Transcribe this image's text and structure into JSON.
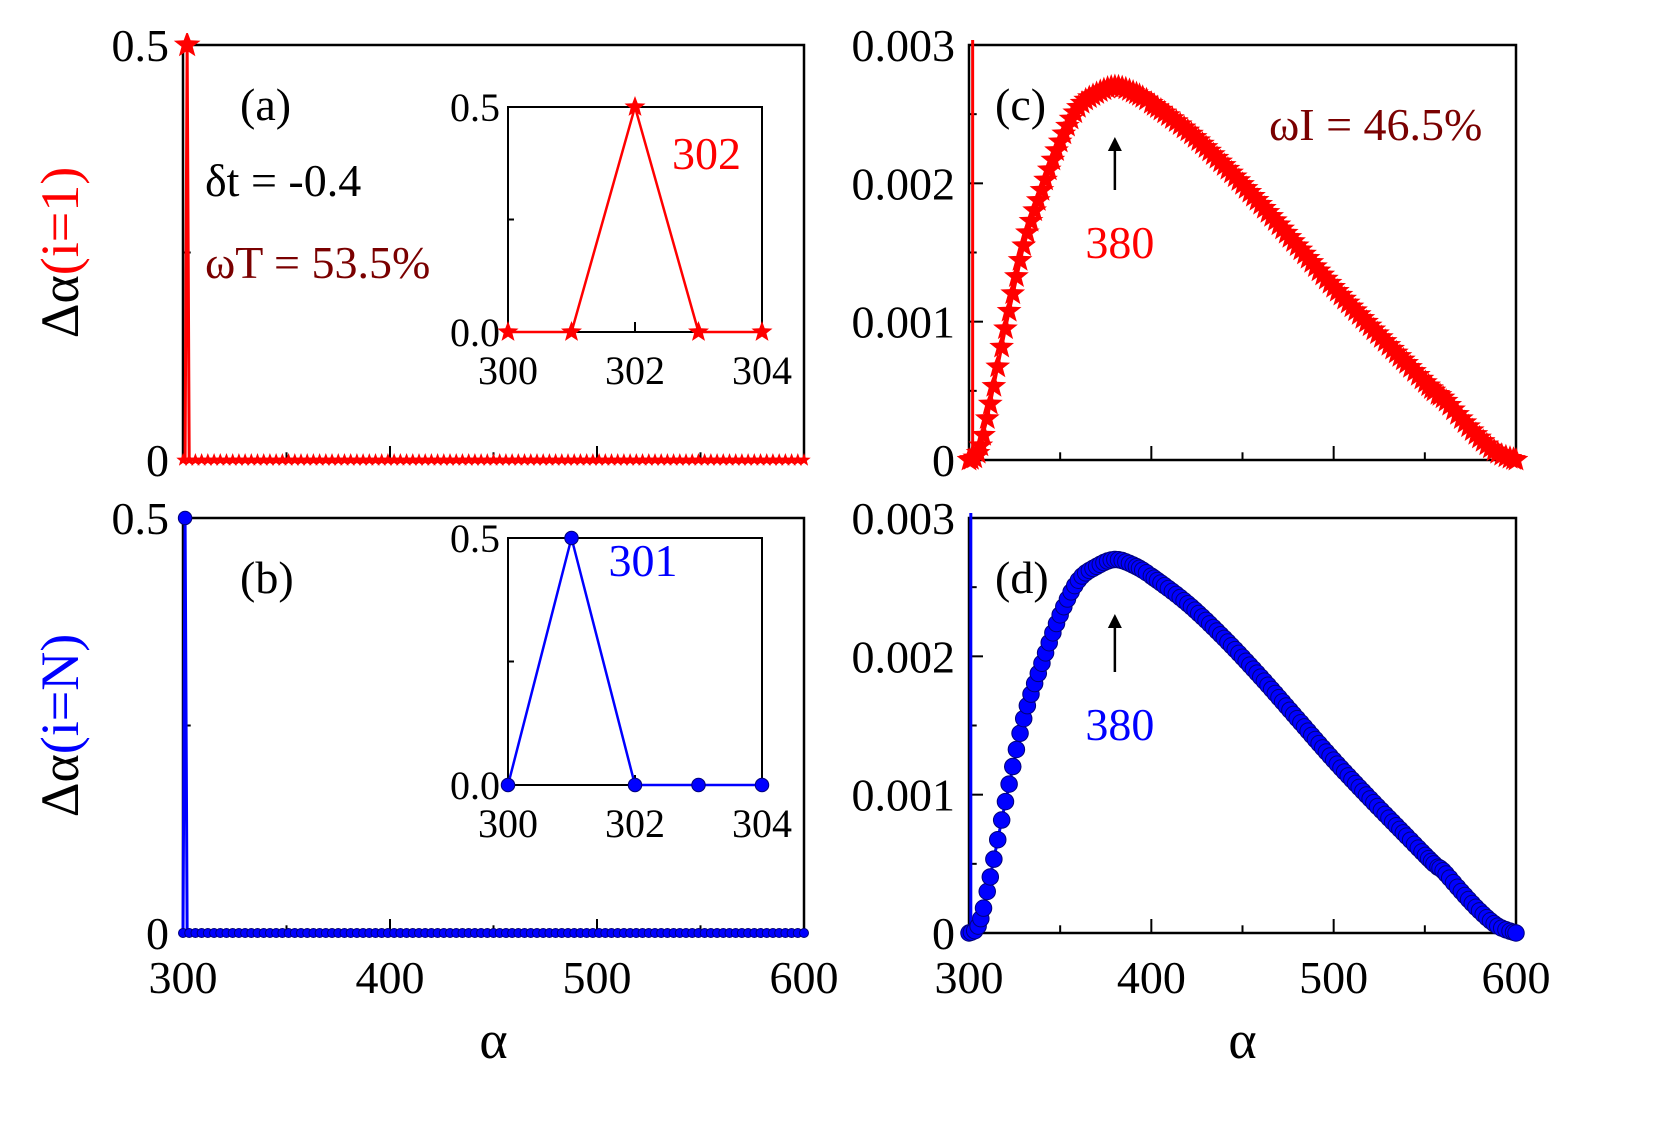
{
  "colors": {
    "red": "#ff0000",
    "blue": "#0000ff",
    "darkred": "#7a0000",
    "black": "#000000"
  },
  "chart_data": [
    {
      "id": "a",
      "type": "line",
      "marker": "star",
      "color": "#ff0000",
      "panel_label": "(a)",
      "ylabel_prefix": "Δα",
      "ylabel_colored": "(i=1)",
      "xlim": [
        300,
        600
      ],
      "ylim": [
        0,
        0.5
      ],
      "xticks": [
        300,
        400,
        500,
        600
      ],
      "yticks": [
        0,
        0.5
      ],
      "ytick_labels": [
        "0",
        "0.5"
      ],
      "show_xtick_labels": false,
      "series": [
        {
          "x": [
            300,
            301,
            302,
            303,
            304,
            310,
            320,
            340,
            360,
            380,
            400,
            420,
            440,
            460,
            480,
            500,
            520,
            540,
            560,
            580,
            600
          ],
          "y": [
            0,
            0,
            0.5,
            0,
            0,
            0,
            0,
            0,
            0,
            0,
            0,
            0,
            0,
            0,
            0,
            0,
            0,
            0,
            0,
            0,
            0
          ]
        }
      ],
      "annotations": [
        {
          "text": "δt = -0.4",
          "color": "#000000"
        },
        {
          "text": "ωT = 53.5%",
          "color": "#7a0000"
        }
      ],
      "inset": {
        "xlim": [
          300,
          304
        ],
        "ylim": [
          0,
          0.5
        ],
        "xticks": [
          300,
          302,
          304
        ],
        "yticks": [
          0.0,
          0.5
        ],
        "ytick_labels": [
          "0.0",
          "0.5"
        ],
        "x": [
          300,
          301,
          302,
          303,
          304
        ],
        "y": [
          0,
          0,
          0.5,
          0,
          0
        ],
        "peak_label": "302"
      }
    },
    {
      "id": "b",
      "type": "line",
      "marker": "sphere",
      "color": "#0000ff",
      "panel_label": "(b)",
      "ylabel_prefix": "Δα",
      "ylabel_colored": "(i=N)",
      "xlabel": "α",
      "xlim": [
        300,
        600
      ],
      "ylim": [
        0,
        0.5
      ],
      "xticks": [
        300,
        400,
        500,
        600
      ],
      "yticks": [
        0,
        0.5
      ],
      "ytick_labels": [
        "0",
        "0.5"
      ],
      "show_xtick_labels": true,
      "series": [
        {
          "x": [
            300,
            301,
            302,
            303,
            304,
            310,
            320,
            340,
            360,
            380,
            400,
            420,
            440,
            460,
            480,
            500,
            520,
            540,
            560,
            580,
            600
          ],
          "y": [
            0,
            0.5,
            0,
            0,
            0,
            0,
            0,
            0,
            0,
            0,
            0,
            0,
            0,
            0,
            0,
            0,
            0,
            0,
            0,
            0,
            0
          ]
        }
      ],
      "inset": {
        "xlim": [
          300,
          304
        ],
        "ylim": [
          0,
          0.5
        ],
        "xticks": [
          300,
          302,
          304
        ],
        "yticks": [
          0.0,
          0.5
        ],
        "ytick_labels": [
          "0.0",
          "0.5"
        ],
        "x": [
          300,
          301,
          302,
          303,
          304
        ],
        "y": [
          0,
          0.5,
          0,
          0,
          0
        ],
        "peak_label": "301"
      }
    },
    {
      "id": "c",
      "type": "line",
      "marker": "star",
      "color": "#ff0000",
      "panel_label": "(c)",
      "xlim": [
        300,
        600
      ],
      "ylim": [
        0,
        0.003
      ],
      "xticks": [
        300,
        400,
        500,
        600
      ],
      "yticks": [
        0,
        0.001,
        0.002,
        0.003
      ],
      "ytick_labels": [
        "0",
        "0.001",
        "0.002",
        "0.003"
      ],
      "show_xtick_labels": false,
      "series": [
        {
          "x": [
            300,
            305,
            310,
            320,
            330,
            340,
            350,
            360,
            370,
            380,
            390,
            400,
            420,
            440,
            460,
            480,
            500,
            520,
            540,
            555,
            560,
            570,
            580,
            590,
            600
          ],
          "y": [
            0,
            5e-05,
            0.0003,
            0.00095,
            0.00155,
            0.00195,
            0.0023,
            0.00255,
            0.00265,
            0.0027,
            0.00266,
            0.00258,
            0.00238,
            0.00213,
            0.00185,
            0.00155,
            0.00125,
            0.00097,
            0.0007,
            0.0005,
            0.00045,
            0.0003,
            0.00016,
            5e-05,
            0.0
          ]
        }
      ],
      "spike": {
        "x": 302,
        "y_top": 0.003
      },
      "peak_arrow_label": "380",
      "annotations": [
        {
          "text": "ωI = 46.5%",
          "color": "#7a0000"
        }
      ]
    },
    {
      "id": "d",
      "type": "line",
      "marker": "sphere",
      "color": "#0000ff",
      "panel_label": "(d)",
      "xlabel": "α",
      "xlim": [
        300,
        600
      ],
      "ylim": [
        0,
        0.003
      ],
      "xticks": [
        300,
        400,
        500,
        600
      ],
      "yticks": [
        0,
        0.001,
        0.002,
        0.003
      ],
      "ytick_labels": [
        "0",
        "0.001",
        "0.002",
        "0.003"
      ],
      "show_xtick_labels": true,
      "series": [
        {
          "x": [
            300,
            305,
            310,
            320,
            330,
            340,
            350,
            360,
            370,
            380,
            390,
            400,
            420,
            440,
            460,
            480,
            500,
            520,
            540,
            555,
            560,
            570,
            580,
            590,
            600
          ],
          "y": [
            0,
            5e-05,
            0.0003,
            0.00095,
            0.00155,
            0.00195,
            0.0023,
            0.00255,
            0.00265,
            0.0027,
            0.00266,
            0.00258,
            0.00238,
            0.00213,
            0.00185,
            0.00155,
            0.00125,
            0.00097,
            0.0007,
            0.0005,
            0.00045,
            0.0003,
            0.00016,
            5e-05,
            0.0
          ]
        }
      ],
      "spike": {
        "x": 301,
        "y_top": 0.003
      },
      "peak_arrow_label": "380"
    }
  ]
}
